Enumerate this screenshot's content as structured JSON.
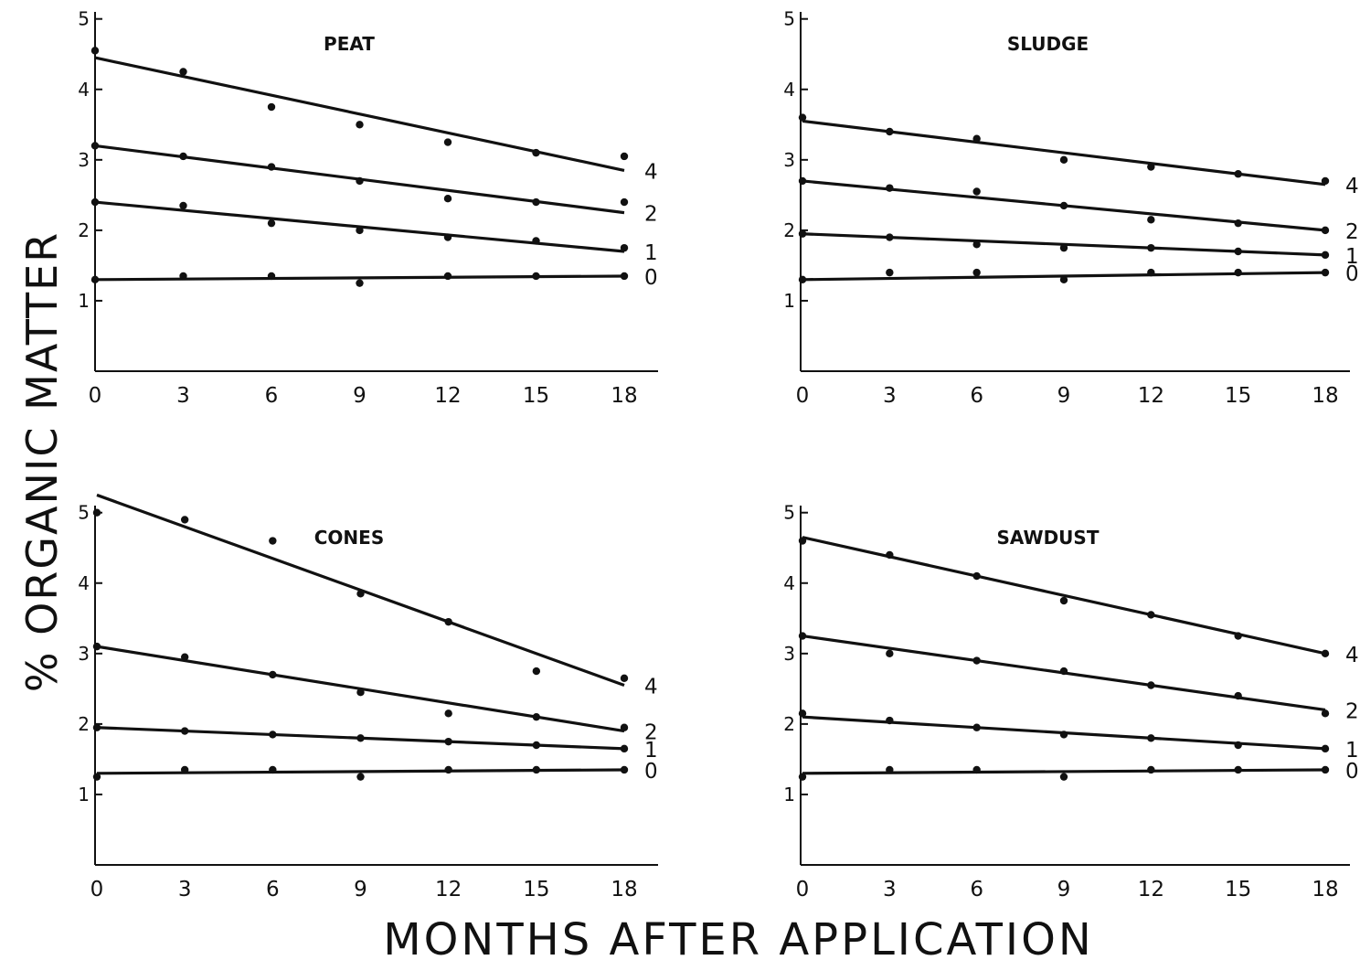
{
  "figure": {
    "ylabel": "% ORGANIC MATTER",
    "xlabel": "MONTHS AFTER APPLICATION"
  },
  "chart_data": [
    {
      "type": "scatter",
      "title": "PEAT",
      "xticks": [
        0,
        3,
        6,
        9,
        12,
        15,
        18
      ],
      "yticks": [
        1,
        2,
        3,
        4,
        5
      ],
      "xlim": [
        0,
        19
      ],
      "ylim": [
        0,
        5.1
      ],
      "x": [
        0,
        3,
        6,
        9,
        12,
        15,
        18
      ],
      "series": [
        {
          "name": "4",
          "values": [
            4.55,
            4.25,
            3.75,
            3.5,
            3.25,
            3.1,
            3.05
          ],
          "fit": [
            4.45,
            2.85
          ]
        },
        {
          "name": "2",
          "values": [
            3.2,
            3.05,
            2.9,
            2.7,
            2.45,
            2.4,
            2.4
          ],
          "fit": [
            3.2,
            2.25
          ]
        },
        {
          "name": "1",
          "values": [
            2.4,
            2.35,
            2.1,
            2.0,
            1.9,
            1.85,
            1.75
          ],
          "fit": [
            2.4,
            1.7
          ]
        },
        {
          "name": "0",
          "values": [
            1.3,
            1.35,
            1.35,
            1.25,
            1.35,
            1.35,
            1.35
          ],
          "fit": [
            1.3,
            1.35
          ]
        }
      ]
    },
    {
      "type": "scatter",
      "title": "SLUDGE",
      "xticks": [
        0,
        3,
        6,
        9,
        12,
        15,
        18
      ],
      "yticks": [
        1,
        2,
        3,
        4,
        5
      ],
      "xlim": [
        0,
        19
      ],
      "ylim": [
        0,
        5.1
      ],
      "x": [
        0,
        3,
        6,
        9,
        12,
        15,
        18
      ],
      "series": [
        {
          "name": "4",
          "values": [
            3.6,
            3.4,
            3.3,
            3.0,
            2.9,
            2.8,
            2.7
          ],
          "fit": [
            3.55,
            2.65
          ]
        },
        {
          "name": "2",
          "values": [
            2.7,
            2.6,
            2.55,
            2.35,
            2.15,
            2.1,
            2.0
          ],
          "fit": [
            2.7,
            2.0
          ]
        },
        {
          "name": "1",
          "values": [
            1.95,
            1.9,
            1.8,
            1.75,
            1.75,
            1.7,
            1.65
          ],
          "fit": [
            1.95,
            1.65
          ]
        },
        {
          "name": "0",
          "values": [
            1.3,
            1.4,
            1.4,
            1.3,
            1.4,
            1.4,
            1.4
          ],
          "fit": [
            1.3,
            1.4
          ]
        }
      ]
    },
    {
      "type": "scatter",
      "title": "CONES",
      "xticks": [
        0,
        3,
        6,
        9,
        12,
        15,
        18
      ],
      "yticks": [
        1,
        2,
        3,
        4,
        5
      ],
      "xlim": [
        0,
        19
      ],
      "ylim": [
        0,
        5.1
      ],
      "x": [
        0,
        3,
        6,
        9,
        12,
        15,
        18
      ],
      "series": [
        {
          "name": "4",
          "values": [
            5.0,
            4.9,
            4.6,
            3.85,
            3.45,
            2.75,
            2.65
          ],
          "fit": [
            5.25,
            2.55
          ]
        },
        {
          "name": "2",
          "values": [
            3.1,
            2.95,
            2.7,
            2.45,
            2.15,
            2.1,
            1.95
          ],
          "fit": [
            3.1,
            1.9
          ]
        },
        {
          "name": "1",
          "values": [
            1.95,
            1.9,
            1.85,
            1.8,
            1.75,
            1.7,
            1.65
          ],
          "fit": [
            1.95,
            1.65
          ]
        },
        {
          "name": "0",
          "values": [
            1.25,
            1.35,
            1.35,
            1.25,
            1.35,
            1.35,
            1.35
          ],
          "fit": [
            1.3,
            1.35
          ]
        }
      ]
    },
    {
      "type": "scatter",
      "title": "SAWDUST",
      "xticks": [
        0,
        3,
        6,
        9,
        12,
        15,
        18
      ],
      "yticks": [
        1,
        2,
        3,
        4,
        5
      ],
      "xlim": [
        0,
        19
      ],
      "ylim": [
        0,
        5.1
      ],
      "x": [
        0,
        3,
        6,
        9,
        12,
        15,
        18
      ],
      "series": [
        {
          "name": "4",
          "values": [
            4.6,
            4.4,
            4.1,
            3.75,
            3.55,
            3.25,
            3.0
          ],
          "fit": [
            4.65,
            3.0
          ]
        },
        {
          "name": "2",
          "values": [
            3.25,
            3.0,
            2.9,
            2.75,
            2.55,
            2.4,
            2.15
          ],
          "fit": [
            3.25,
            2.2
          ]
        },
        {
          "name": "1",
          "values": [
            2.15,
            2.05,
            1.95,
            1.85,
            1.8,
            1.7,
            1.65
          ],
          "fit": [
            2.1,
            1.65
          ]
        },
        {
          "name": "0",
          "values": [
            1.25,
            1.35,
            1.35,
            1.25,
            1.35,
            1.35,
            1.35
          ],
          "fit": [
            1.3,
            1.35
          ]
        }
      ]
    }
  ]
}
